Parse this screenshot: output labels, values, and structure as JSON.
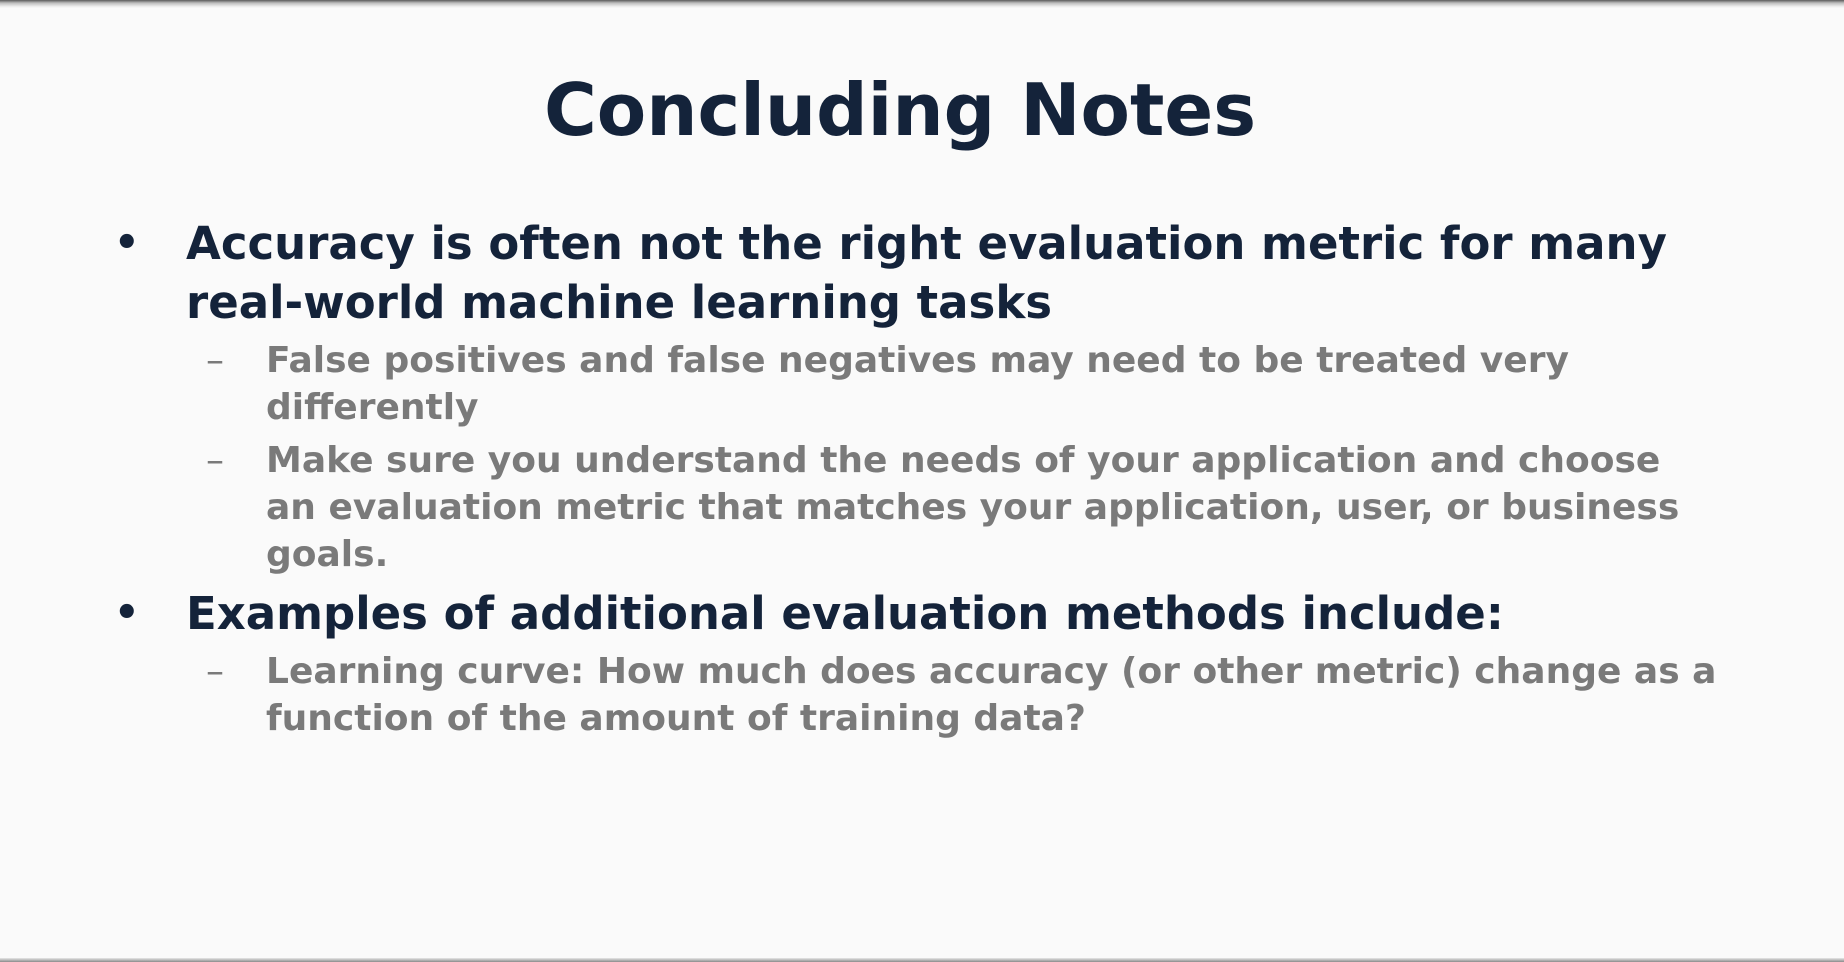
{
  "slide": {
    "title": "Concluding Notes",
    "bullet_glyph": "•",
    "dash_glyph": "–",
    "bullets": [
      {
        "text": "Accuracy is often not the right evaluation metric for many real-world machine learning tasks",
        "sub": [
          "False positives and false negatives may need to be treated very differently",
          "Make sure you understand the needs of your application and choose an evaluation metric that matches your application, user, or business goals."
        ]
      },
      {
        "text": "Examples of additional evaluation methods include:",
        "sub": [
          "Learning curve: How much does accuracy (or other metric) change as a function of the amount of training data?"
        ]
      }
    ]
  },
  "colors": {
    "title": "#14233a",
    "level1_text": "#14233a",
    "level2_text": "#7a7a7a",
    "background": "#fafafa"
  }
}
